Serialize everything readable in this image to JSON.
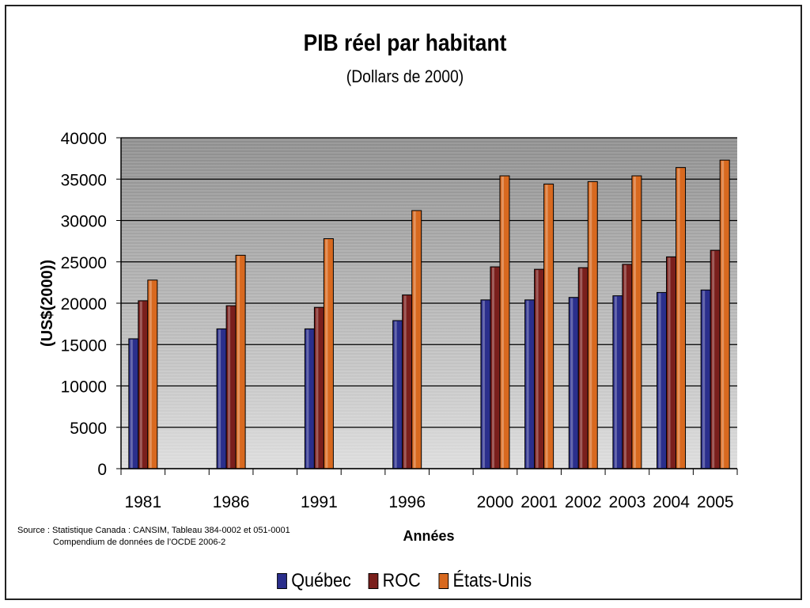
{
  "chart_data": {
    "type": "bar",
    "title": "PIB réel par habitant",
    "subtitle": "(Dollars de 2000)",
    "xlabel": "Années",
    "ylabel": "(US$(2000))",
    "categories": [
      "1981",
      "1986",
      "1991",
      "1996",
      "2000",
      "2001",
      "2002",
      "2003",
      "2004",
      "2005"
    ],
    "category_slots": [
      0,
      2,
      4,
      6,
      8,
      9,
      10,
      11,
      12,
      13
    ],
    "slot_count": 14,
    "series": [
      {
        "name": "Québec",
        "color": "#2b2f8c",
        "values": [
          15700,
          16900,
          16900,
          17900,
          20400,
          20400,
          20700,
          20900,
          21300,
          21600
        ]
      },
      {
        "name": "ROC",
        "color": "#7a1f1c",
        "values": [
          20300,
          19700,
          19500,
          21000,
          24400,
          24100,
          24300,
          24700,
          25600,
          26400
        ]
      },
      {
        "name": "États-Unis",
        "color": "#d8691f",
        "values": [
          22800,
          25800,
          27800,
          31200,
          35400,
          34400,
          34700,
          35400,
          36400,
          37300
        ]
      }
    ],
    "ylim": [
      0,
      40000
    ],
    "yticks": [
      "0",
      "5000",
      "10000",
      "15000",
      "20000",
      "25000",
      "30000",
      "35000",
      "40000"
    ],
    "grid": true,
    "legend": "bottom"
  },
  "source": {
    "line1": "Source : Statistique Canada : CANSIM, Tableau 384-0002 et 051-0001",
    "line2": "Compendium de données de l’OCDE 2006-2"
  }
}
